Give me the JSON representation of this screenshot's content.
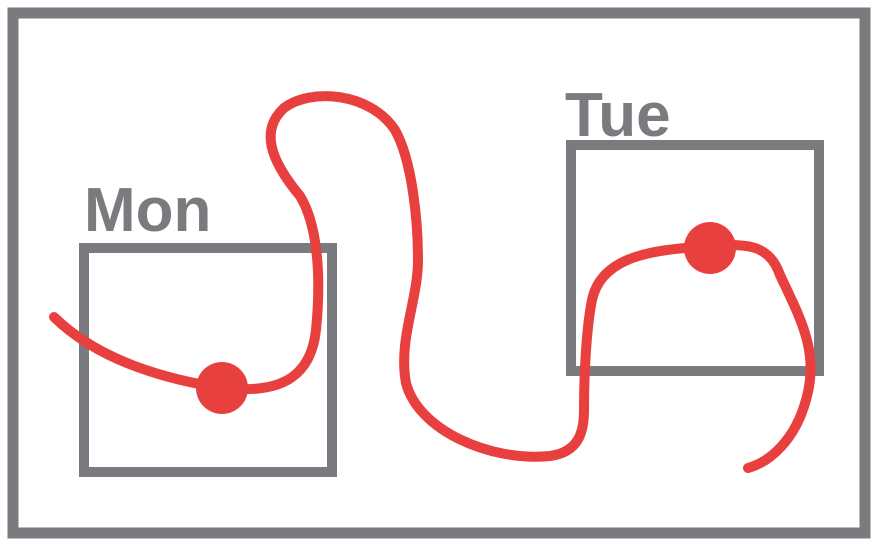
{
  "days": [
    {
      "label": "Mon"
    },
    {
      "label": "Tue"
    }
  ],
  "colors": {
    "frame": "#7a7b7e",
    "box": "#7a7b7e",
    "label": "#7a7b7e",
    "path": "#e8403f",
    "marker": "#e8403f",
    "background": "#ffffff"
  }
}
